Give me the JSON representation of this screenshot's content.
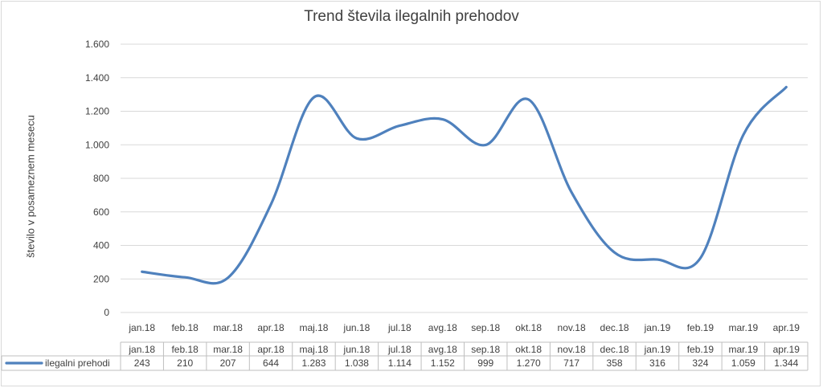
{
  "chart_data": {
    "type": "line",
    "title": "Trend števila ilegalnih prehodov",
    "xlabel": "",
    "ylabel": "število v posameznem mesecu",
    "categories": [
      "jan.18",
      "feb.18",
      "mar.18",
      "apr.18",
      "maj.18",
      "jun.18",
      "jul.18",
      "avg.18",
      "sep.18",
      "okt.18",
      "nov.18",
      "dec.18",
      "jan.19",
      "feb.19",
      "mar.19",
      "apr.19"
    ],
    "series": [
      {
        "name": "ilegalni prehodi",
        "values": [
          243,
          210,
          207,
          644,
          1283,
          1038,
          1114,
          1152,
          999,
          1270,
          717,
          358,
          316,
          324,
          1059,
          1344
        ],
        "value_labels": [
          "243",
          "210",
          "207",
          "644",
          "1.283",
          "1.038",
          "1.114",
          "1.152",
          "999",
          "1.270",
          "717",
          "358",
          "316",
          "324",
          "1.059",
          "1.344"
        ],
        "color": "#4f81bd"
      }
    ],
    "ylim": [
      0,
      1600
    ],
    "yticks": [
      0,
      200,
      400,
      600,
      800,
      1000,
      1200,
      1400,
      1600
    ],
    "ytick_labels": [
      "0",
      "200",
      "400",
      "600",
      "800",
      "1.000",
      "1.200",
      "1.400",
      "1.600"
    ],
    "grid": true,
    "smooth": true,
    "data_table": true
  }
}
